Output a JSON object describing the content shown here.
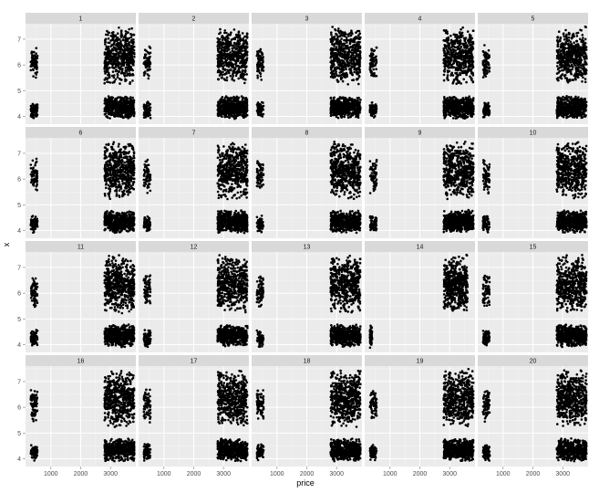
{
  "chart_data": {
    "type": "scatter",
    "facet_variable": "panel",
    "panels": [
      "1",
      "2",
      "3",
      "4",
      "5",
      "6",
      "7",
      "8",
      "9",
      "10",
      "11",
      "12",
      "13",
      "14",
      "15",
      "16",
      "17",
      "18",
      "19",
      "20"
    ],
    "xlabel": "price",
    "ylabel": "x",
    "xlim": [
      150,
      3850
    ],
    "ylim": [
      3.7,
      7.6
    ],
    "x_ticks": [
      1000,
      2000,
      3000
    ],
    "x_tick_labels": [
      "1000",
      "2000",
      "3000"
    ],
    "y_ticks": [
      4,
      5,
      6,
      7
    ],
    "y_tick_labels": [
      "4",
      "5",
      "6",
      "7"
    ],
    "point_color": "#000000",
    "panel_background": "#ebebeb",
    "strip_background": "#d9d9d9",
    "grid": true,
    "grid_color": "#ffffff",
    "clusters": [
      {
        "x": [
          326,
          550
        ],
        "y": [
          5.4,
          6.8
        ],
        "density": "low"
      },
      {
        "x": [
          326,
          550
        ],
        "y": [
          3.9,
          4.6
        ],
        "density": "low"
      },
      {
        "x": [
          2800,
          3800
        ],
        "y": [
          5.2,
          7.5
        ],
        "density": "high"
      },
      {
        "x": [
          2800,
          3800
        ],
        "y": [
          3.9,
          4.8
        ],
        "density": "high"
      }
    ],
    "panel_14_clusters": [
      {
        "x": [
          326,
          400
        ],
        "y": [
          3.8,
          4.8
        ],
        "density": "low"
      },
      {
        "x": [
          2800,
          3600
        ],
        "y": [
          5.2,
          7.5
        ],
        "density": "high"
      }
    ]
  }
}
